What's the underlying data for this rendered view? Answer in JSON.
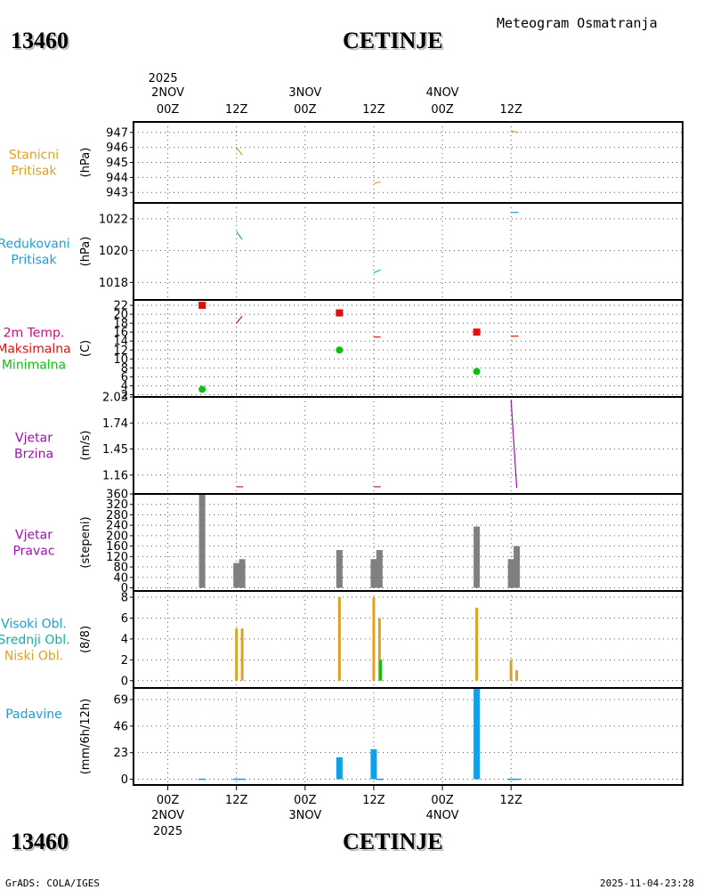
{
  "header": {
    "station_id": "13460",
    "station_name": "CETINJE",
    "subtitle": "Meteogram Osmatranja"
  },
  "footer": {
    "station_id": "13460",
    "station_name": "CETINJE",
    "credit": "GrADS: COLA/IGES",
    "timestamp": "2025-11-04-23:28"
  },
  "colors": {
    "orange": "#e0a020",
    "cyan": "#1ba0d0",
    "magenta": "#c01080",
    "red": "#e01010",
    "green": "#10c010",
    "purple": "#a010b0",
    "gray": "#808080",
    "teal": "#10b0a0",
    "precip": "#10a0e8"
  },
  "chart_data": {
    "type": "meteogram",
    "time_axis": {
      "range_hours": [
        -6,
        90
      ],
      "top_year": "2025",
      "top_date_labels": [
        {
          "h": 0,
          "date": "2NOV"
        },
        {
          "h": 24,
          "date": "3NOV"
        },
        {
          "h": 48,
          "date": "4NOV"
        }
      ],
      "ticks": [
        {
          "h": 0,
          "label": "00Z"
        },
        {
          "h": 12,
          "label": "12Z"
        },
        {
          "h": 24,
          "label": "00Z"
        },
        {
          "h": 36,
          "label": "12Z"
        },
        {
          "h": 48,
          "label": "00Z"
        },
        {
          "h": 60,
          "label": "12Z"
        }
      ],
      "bottom_date_labels": [
        {
          "h": 0,
          "date": "2NOV",
          "year": "2025"
        },
        {
          "h": 24,
          "date": "3NOV"
        },
        {
          "h": 48,
          "date": "4NOV"
        }
      ]
    },
    "panels": [
      {
        "id": "station-pressure",
        "type": "line",
        "labels": [
          {
            "text": "Stanicni",
            "color": "#e0a020"
          },
          {
            "text": "Pritisak",
            "color": "#e0a020"
          }
        ],
        "unit": "(hPa)",
        "ylim": [
          942.3,
          947.7
        ],
        "ticks": [
          947,
          946,
          945,
          944,
          943
        ],
        "tick_labels": [
          "947",
          "946",
          "945",
          "944",
          "943"
        ],
        "series": [
          {
            "color": "#e0a020",
            "points": [
              [
                12,
                946.0
              ],
              [
                13,
                945.5
              ]
            ]
          },
          {
            "color": "#e0a020",
            "points": [
              [
                36,
                943.6
              ],
              [
                37.2,
                943.7
              ]
            ]
          },
          {
            "color": "#e0a020",
            "points": [
              [
                60,
                947.1
              ],
              [
                61.3,
                947.0
              ]
            ]
          }
        ]
      },
      {
        "id": "reduced-pressure",
        "type": "line",
        "labels": [
          {
            "text": "Redukovani",
            "color": "#1ba0d0"
          },
          {
            "text": "Pritisak",
            "color": "#1ba0d0"
          }
        ],
        "unit": "(hPa)",
        "ylim": [
          1016.9,
          1023.0
        ],
        "ticks": [
          1022,
          1020,
          1018
        ],
        "tick_labels": [
          "1022",
          "1020",
          "1018"
        ],
        "series": [
          {
            "color": "#1ba0d0",
            "points": [
              [
                12,
                1021.2
              ],
              [
                13,
                1020.7
              ]
            ]
          },
          {
            "color": "#1ba0d0",
            "points": [
              [
                36,
                1018.6
              ],
              [
                37.2,
                1018.8
              ]
            ]
          },
          {
            "color": "#1ba0d0",
            "points": [
              [
                60,
                1022.4
              ],
              [
                61.3,
                1022.4
              ]
            ]
          }
        ]
      },
      {
        "id": "temperature",
        "type": "line+scatter",
        "labels": [
          {
            "text": "2m Temp.",
            "color": "#c01080"
          },
          {
            "text": "Maksimalna",
            "color": "#e01010"
          },
          {
            "text": "Minimalna",
            "color": "#10c010"
          }
        ],
        "unit": "(C)",
        "ylim": [
          1.5,
          23.2
        ],
        "ticks": [
          22,
          20,
          18,
          16,
          14,
          12,
          10,
          8,
          6,
          4,
          2
        ],
        "tick_labels": [
          "22",
          "20",
          "18",
          "16",
          "14",
          "12",
          "10",
          "8",
          "6",
          "4",
          "2"
        ],
        "series": [
          {
            "color": "#c01080",
            "points": [
              [
                12,
                18.0
              ],
              [
                13,
                19.6
              ]
            ]
          },
          {
            "color": "#e01010",
            "points": [
              [
                36,
                14.9
              ],
              [
                37.2,
                14.9
              ]
            ]
          },
          {
            "color": "#e01010",
            "points": [
              [
                60,
                15.1
              ],
              [
                61.3,
                15.1
              ]
            ]
          }
        ],
        "max_points": [
          [
            6,
            22.0
          ],
          [
            30,
            20.3
          ],
          [
            54,
            16.0
          ]
        ],
        "min_points": [
          [
            6,
            3.2
          ],
          [
            30,
            12.0
          ],
          [
            54,
            7.2
          ]
        ]
      },
      {
        "id": "wind-speed",
        "type": "line",
        "labels": [
          {
            "text": "Vjetar",
            "color": "#a010b0"
          },
          {
            "text": "Brzina",
            "color": "#a010b0"
          }
        ],
        "unit": "(m/s)",
        "ylim": [
          0.95,
          2.03
        ],
        "ticks": [
          2.03,
          1.74,
          1.45,
          1.16
        ],
        "tick_labels": [
          "2.03",
          "1.74",
          "1.45",
          "1.16"
        ],
        "series": [
          {
            "color": "#c01080",
            "points": [
              [
                12,
                1.03
              ],
              [
                13.2,
                1.03
              ]
            ]
          },
          {
            "color": "#c01080",
            "points": [
              [
                36,
                1.03
              ],
              [
                37.2,
                1.03
              ]
            ]
          },
          {
            "color": "#a010b0",
            "points": [
              [
                60,
                2.0
              ],
              [
                61,
                1.02
              ]
            ]
          }
        ]
      },
      {
        "id": "wind-direction",
        "type": "bar",
        "labels": [
          {
            "text": "Vjetar",
            "color": "#a010b0"
          },
          {
            "text": "Pravac",
            "color": "#a010b0"
          }
        ],
        "unit": "(stepeni)",
        "ylim": [
          -12,
          360
        ],
        "ticks": [
          360,
          320,
          280,
          240,
          200,
          160,
          120,
          80,
          40,
          0
        ],
        "tick_labels": [
          "360",
          "320",
          "280",
          "240",
          "200",
          "160",
          "120",
          "80",
          "40",
          "0"
        ],
        "bars": [
          {
            "h": 6,
            "value": 360
          },
          {
            "h": 12,
            "value": 95
          },
          {
            "h": 13,
            "value": 110
          },
          {
            "h": 30,
            "value": 145
          },
          {
            "h": 36,
            "value": 110
          },
          {
            "h": 37,
            "value": 145
          },
          {
            "h": 54,
            "value": 235
          },
          {
            "h": 60,
            "value": 110
          },
          {
            "h": 61,
            "value": 160
          }
        ]
      },
      {
        "id": "clouds",
        "type": "bar",
        "labels": [
          {
            "text": "Visoki Obl.",
            "color": "#1ba0d0"
          },
          {
            "text": "Srednji Obl.",
            "color": "#10b0a0"
          },
          {
            "text": "Niski Obl.",
            "color": "#e0a020"
          }
        ],
        "unit": "(8/8)",
        "ylim": [
          -0.7,
          8.6
        ],
        "ticks": [
          8,
          6,
          4,
          2,
          0
        ],
        "tick_labels": [
          "8",
          "6",
          "4",
          "2",
          "0"
        ],
        "bars": [
          {
            "h": 12,
            "value": 5,
            "series": "low"
          },
          {
            "h": 13,
            "value": 5,
            "series": "low"
          },
          {
            "h": 30,
            "value": 8,
            "series": "low"
          },
          {
            "h": 36,
            "value": 8,
            "series": "low"
          },
          {
            "h": 37,
            "value": 6,
            "series": "low"
          },
          {
            "h": 37.2,
            "value": 2,
            "series": "middle"
          },
          {
            "h": 54,
            "value": 7,
            "series": "low"
          },
          {
            "h": 60,
            "value": 2,
            "series": "low"
          },
          {
            "h": 61,
            "value": 1,
            "series": "low"
          }
        ]
      },
      {
        "id": "precipitation",
        "type": "bar",
        "labels": [
          {
            "text": "Padavine",
            "color": "#1ba0d0"
          }
        ],
        "unit": "(mm/6h/12h)",
        "ylim": [
          -5,
          79
        ],
        "ticks": [
          69,
          46,
          23,
          0
        ],
        "tick_labels": [
          "69",
          "46",
          "23",
          "0"
        ],
        "bars": [
          {
            "h": 6,
            "value": 0.5
          },
          {
            "h": 12,
            "value": 0.5
          },
          {
            "h": 13,
            "value": 0.5
          },
          {
            "h": 30,
            "value": 19
          },
          {
            "h": 36,
            "value": 26
          },
          {
            "h": 37,
            "value": 0.5
          },
          {
            "h": 54,
            "value": 79
          },
          {
            "h": 60,
            "value": 0.5
          },
          {
            "h": 61,
            "value": 0.5
          }
        ]
      }
    ]
  }
}
